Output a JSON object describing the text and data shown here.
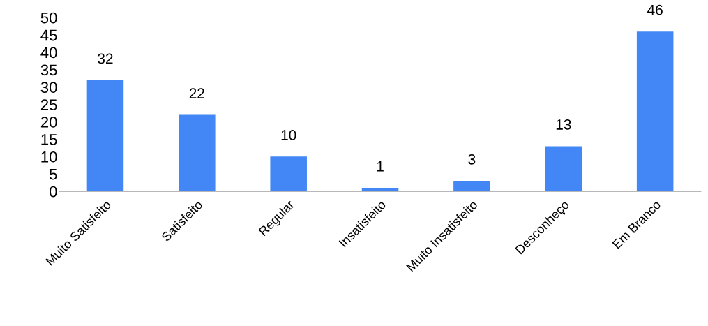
{
  "chart_data": {
    "type": "bar",
    "categories": [
      "Muito Satisfeito",
      "Satisfeito",
      "Regular",
      "Insatisfeito",
      "Muito Insatisfeito",
      "Desconheço",
      "Em Branco"
    ],
    "values": [
      32,
      22,
      10,
      1,
      3,
      13,
      46
    ],
    "color": "#4287f5",
    "ylim": [
      0,
      50
    ],
    "yticks": [
      0,
      5,
      10,
      15,
      20,
      25,
      30,
      35,
      40,
      45,
      50
    ],
    "data_labels": true,
    "grid": false,
    "legend": false
  }
}
